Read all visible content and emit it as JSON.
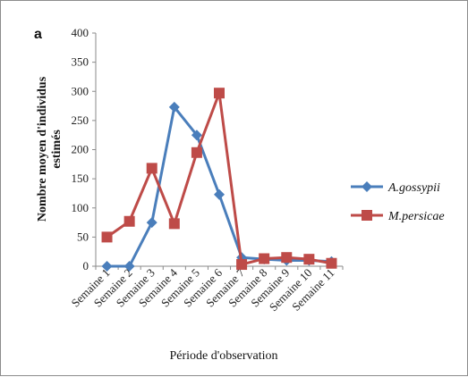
{
  "chart_data": {
    "type": "line",
    "panel_label": "a",
    "xlabel": "Période d'observation",
    "ylabel_lines": [
      "Nombre moyen d'individus",
      "estimés"
    ],
    "categories": [
      "Semaine 1",
      "Semaine 2",
      "Semaine 3",
      "Semaine 4",
      "Semaine 5",
      "Semaine 6",
      "Semaine 7",
      "Semaine 8",
      "Semaine 9",
      "Semaine 10",
      "Semaine 11"
    ],
    "ylim": [
      0,
      400
    ],
    "yticks": [
      0,
      50,
      100,
      150,
      200,
      250,
      300,
      350,
      400
    ],
    "grid": false,
    "legend_position": "right",
    "series": [
      {
        "name": "A.gossypii",
        "marker": "diamond",
        "color": "#4a7ebb",
        "values": [
          0,
          0,
          75,
          273,
          225,
          123,
          15,
          12,
          10,
          10,
          8
        ]
      },
      {
        "name": "M.persicae",
        "marker": "square",
        "color": "#be4b48",
        "values": [
          50,
          77,
          168,
          73,
          195,
          297,
          3,
          13,
          15,
          12,
          5
        ]
      }
    ]
  }
}
